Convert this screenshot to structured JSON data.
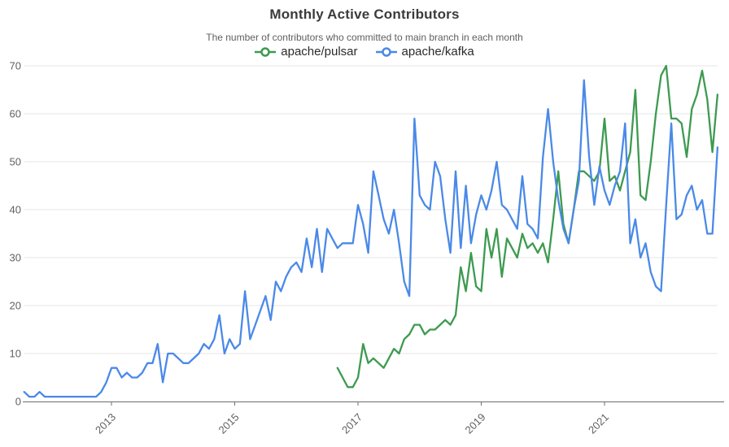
{
  "header": {
    "title": "Monthly Active Contributors",
    "subtitle": "The number of contributors who committed to main branch in each month"
  },
  "chart_data": {
    "type": "line",
    "title": "Monthly Active Contributors",
    "subtitle": "The number of contributors who committed to main branch in each month",
    "x_axis": {
      "kind": "time-monthly",
      "first_month": "2011-08",
      "last_month": "2022-11",
      "tick_labels": [
        "2013",
        "2015",
        "2017",
        "2019",
        "2021"
      ],
      "ticks": [
        {
          "label": "2013",
          "month_index": 17
        },
        {
          "label": "2015",
          "month_index": 41
        },
        {
          "label": "2017",
          "month_index": 65
        },
        {
          "label": "2019",
          "month_index": 89
        },
        {
          "label": "2021",
          "month_index": 113
        }
      ]
    },
    "y_axis": {
      "ticks": [
        0,
        10,
        20,
        30,
        40,
        50,
        60,
        70
      ],
      "ylim": [
        0,
        70
      ]
    },
    "grid": "horizontal",
    "legend_position": "top",
    "series": [
      {
        "name": "apache/pulsar",
        "color": "#3d9a50",
        "start_month": "2016-09",
        "start_index": 61,
        "values": [
          7,
          5,
          3,
          3,
          5,
          12,
          8,
          9,
          8,
          7,
          9,
          11,
          10,
          13,
          14,
          16,
          16,
          14,
          15,
          15,
          16,
          17,
          16,
          18,
          28,
          23,
          31,
          24,
          23,
          36,
          30,
          36,
          26,
          34,
          32,
          30,
          35,
          32,
          33,
          31,
          33,
          29,
          38,
          48,
          37,
          33,
          40,
          48,
          48,
          47,
          46,
          48,
          59,
          46,
          47,
          44,
          48,
          52,
          65,
          43,
          42,
          50,
          60,
          68,
          70,
          59,
          59,
          58,
          51,
          61,
          64,
          69,
          63,
          52,
          64
        ]
      },
      {
        "name": "apache/kafka",
        "color": "#4a89e8",
        "start_month": "2011-08",
        "start_index": 0,
        "values": [
          2,
          1,
          1,
          2,
          1,
          1,
          1,
          1,
          1,
          1,
          1,
          1,
          1,
          1,
          1,
          2,
          4,
          7,
          7,
          5,
          6,
          5,
          5,
          6,
          8,
          8,
          12,
          4,
          10,
          10,
          9,
          8,
          8,
          9,
          10,
          12,
          11,
          13,
          18,
          10,
          13,
          11,
          12,
          23,
          13,
          16,
          19,
          22,
          17,
          25,
          23,
          26,
          28,
          29,
          27,
          34,
          28,
          36,
          27,
          36,
          34,
          32,
          33,
          33,
          33,
          41,
          37,
          31,
          48,
          43,
          38,
          35,
          40,
          33,
          25,
          22,
          59,
          43,
          41,
          40,
          50,
          47,
          38,
          31,
          48,
          32,
          45,
          33,
          39,
          43,
          40,
          44,
          50,
          41,
          40,
          38,
          36,
          47,
          37,
          36,
          34,
          51,
          61,
          50,
          42,
          36,
          33,
          40,
          46,
          67,
          51,
          41,
          49,
          44,
          41,
          45,
          48,
          58,
          33,
          38,
          30,
          33,
          27,
          24,
          23,
          41,
          58,
          38,
          39,
          43,
          45,
          40,
          42,
          35,
          35,
          53
        ]
      }
    ],
    "colors": {
      "gridline": "#e4e4e4",
      "axis": "#6d6d6d",
      "tick_text": "#616161"
    }
  }
}
